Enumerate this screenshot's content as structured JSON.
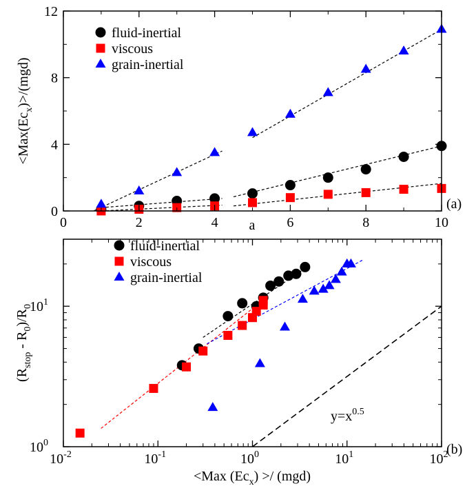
{
  "chart_data": [
    {
      "type": "scatter",
      "panel_label": "(a)",
      "xlabel": "a",
      "ylabel_parts": {
        "main": "<Max(Ec",
        "sub": "x",
        "rest": ")>/(mgd)"
      },
      "xlim": [
        0,
        10
      ],
      "ylim": [
        0,
        12
      ],
      "xticks": [
        "0",
        "2",
        "4",
        "6",
        "8",
        "10"
      ],
      "yticks": [
        "0",
        "4",
        "8",
        "12"
      ],
      "legend": {
        "position": "top-left"
      },
      "series": [
        {
          "name": "fluid-inertial",
          "marker": "circle",
          "color": "#000000",
          "x": [
            1,
            2,
            3,
            4,
            5,
            6,
            7,
            8,
            9,
            10
          ],
          "y": [
            0.1,
            0.3,
            0.6,
            0.75,
            1.05,
            1.55,
            2.0,
            2.5,
            3.25,
            3.9
          ]
        },
        {
          "name": "viscous",
          "marker": "square",
          "color": "#ff0000",
          "x": [
            1,
            2,
            3,
            4,
            5,
            6,
            7,
            8,
            9,
            10
          ],
          "y": [
            0.0,
            0.1,
            0.2,
            0.3,
            0.5,
            0.8,
            1.0,
            1.1,
            1.3,
            1.35
          ]
        },
        {
          "name": "grain-inertial",
          "marker": "triangle",
          "color": "#0000ff",
          "x": [
            1,
            2,
            3,
            4,
            5,
            6,
            7,
            8,
            9,
            10
          ],
          "y": [
            0.4,
            1.2,
            2.3,
            3.5,
            4.7,
            5.8,
            7.1,
            8.5,
            9.6,
            10.9
          ]
        }
      ],
      "fit_lines": [
        {
          "color": "#000000",
          "x": [
            0.8,
            4.2
          ],
          "y": [
            0.0,
            3.6
          ]
        },
        {
          "color": "#000000",
          "x": [
            5.0,
            10.0
          ],
          "y": [
            4.4,
            10.9
          ]
        },
        {
          "color": "#000000",
          "x": [
            1.0,
            4.2
          ],
          "y": [
            0.2,
            0.75
          ]
        },
        {
          "color": "#000000",
          "x": [
            4.5,
            10.0
          ],
          "y": [
            0.85,
            3.9
          ]
        },
        {
          "color": "#000000",
          "x": [
            1.0,
            4.2
          ],
          "y": [
            0.0,
            0.35
          ]
        },
        {
          "color": "#000000",
          "x": [
            4.5,
            10.0
          ],
          "y": [
            0.3,
            1.65
          ]
        }
      ]
    },
    {
      "type": "scatter",
      "panel_label": "(b)",
      "xscale": "log",
      "yscale": "log",
      "xlabel_parts": {
        "main": "<Max (Ec",
        "sub": "x",
        "rest": ") >/ (mgd)"
      },
      "ylabel_parts": {
        "open": "(R",
        "sub1": "stop",
        "mid": " - R",
        "sub2": "0",
        "close": ")/R",
        "sub3": "0"
      },
      "xlim": [
        0.01,
        100
      ],
      "ylim": [
        1,
        30
      ],
      "xticks": [
        {
          "value": 0.01,
          "base": "10",
          "exp": "-2"
        },
        {
          "value": 0.1,
          "base": "10",
          "exp": "-1"
        },
        {
          "value": 1,
          "base": "10",
          "exp": "0"
        },
        {
          "value": 10,
          "base": "10",
          "exp": "1"
        },
        {
          "value": 100,
          "base": "10",
          "exp": "2"
        }
      ],
      "yticks": [
        {
          "value": 1,
          "base": "10",
          "exp": "0"
        },
        {
          "value": 10,
          "base": "10",
          "exp": "1"
        }
      ],
      "legend": {
        "position": "top-left"
      },
      "annotation": {
        "text_base": "y=x",
        "text_exp": "0.5"
      },
      "series": [
        {
          "name": "fluid-inertial",
          "marker": "circle",
          "color": "#000000",
          "x": [
            0.18,
            0.27,
            0.55,
            0.78,
            1.1,
            1.3,
            1.55,
            1.9,
            2.4,
            2.9,
            3.6
          ],
          "y": [
            3.8,
            5.0,
            8.5,
            10.5,
            10.0,
            11.5,
            14.0,
            15.0,
            16.5,
            17.0,
            19.0
          ]
        },
        {
          "name": "viscous",
          "marker": "square",
          "color": "#ff0000",
          "x": [
            0.015,
            0.09,
            0.2,
            0.3,
            0.55,
            0.78,
            1.0,
            1.1,
            1.3,
            1.3
          ],
          "y": [
            1.25,
            2.6,
            3.7,
            4.8,
            6.2,
            7.3,
            8.3,
            9.2,
            10.2,
            11.0
          ]
        },
        {
          "name": "grain-inertial",
          "marker": "triangle",
          "color": "#0000ff",
          "x": [
            0.38,
            1.2,
            2.2,
            3.4,
            4.5,
            5.6,
            6.5,
            7.6,
            8.8,
            10.0,
            11.0
          ],
          "y": [
            1.9,
            3.9,
            7.1,
            11.2,
            12.8,
            13.2,
            14.0,
            15.5,
            17.5,
            20.0,
            20.0
          ]
        }
      ],
      "fit_lines": [
        {
          "color": "#ff0000",
          "x": [
            0.025,
            1.4
          ],
          "y": [
            1.35,
            11.5
          ]
        },
        {
          "color": "#0000ff",
          "x": [
            0.33,
            15.0
          ],
          "y": [
            5.4,
            21.5
          ]
        },
        {
          "color": "#000000",
          "x": [
            0.3,
            4.0
          ],
          "y": [
            6.0,
            19.5
          ]
        },
        {
          "color": "#000000",
          "x": [
            1.0,
            100.0
          ],
          "y": [
            1.0,
            10.0
          ]
        }
      ]
    }
  ]
}
